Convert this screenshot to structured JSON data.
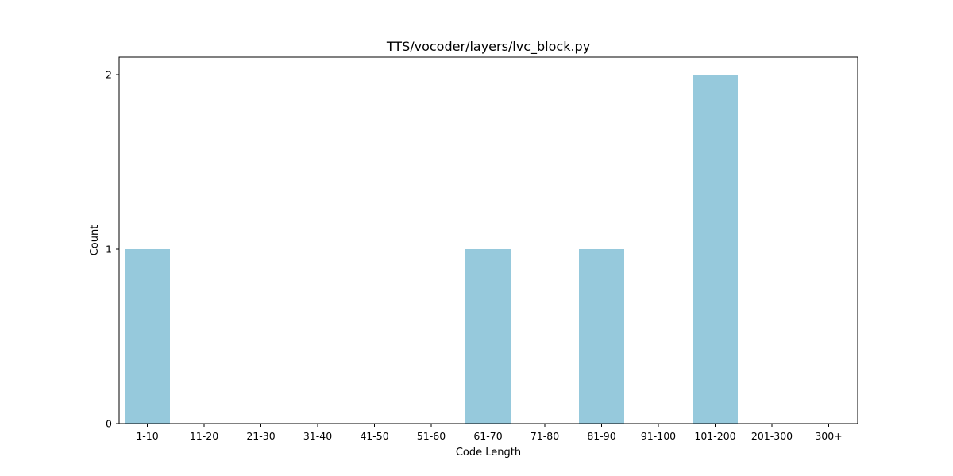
{
  "chart_data": {
    "type": "bar",
    "title": "TTS/vocoder/layers/lvc_block.py",
    "xlabel": "Code Length",
    "ylabel": "Count",
    "categories": [
      "1-10",
      "11-20",
      "21-30",
      "31-40",
      "41-50",
      "51-60",
      "61-70",
      "71-80",
      "81-90",
      "91-100",
      "101-200",
      "201-300",
      "300+"
    ],
    "values": [
      1,
      0,
      0,
      0,
      0,
      0,
      1,
      0,
      1,
      0,
      2,
      0,
      0
    ],
    "yticks": [
      0,
      1,
      2
    ],
    "ylim": [
      0,
      2.1
    ],
    "grid": false,
    "bar_color": "#96c9dc"
  }
}
